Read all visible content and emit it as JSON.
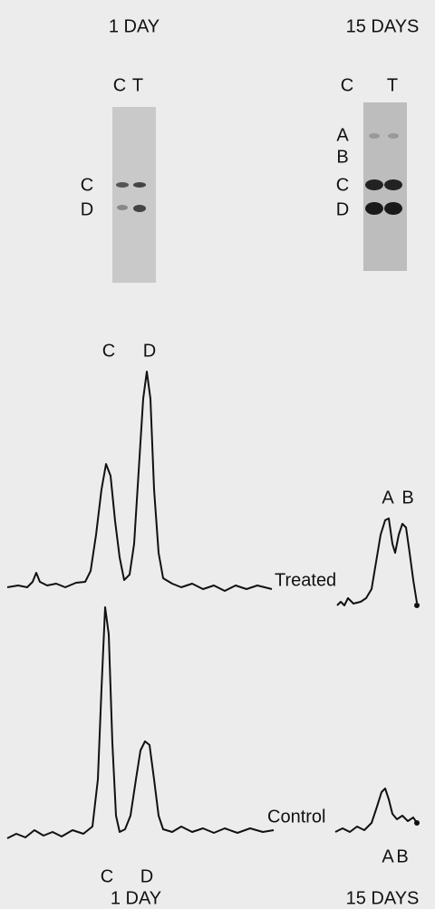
{
  "top_labels": {
    "left": "1 DAY",
    "right": "15 DAYS"
  },
  "gel_left": {
    "lanes": [
      "C",
      "T"
    ],
    "bands": [
      "C",
      "D"
    ]
  },
  "gel_right": {
    "lanes": [
      "C",
      "T"
    ],
    "bands": [
      "A",
      "B",
      "C",
      "D"
    ]
  },
  "traces": {
    "treated_left_peaks": [
      "C",
      "D"
    ],
    "treated_right_peaks": [
      "A",
      "B"
    ],
    "treated_label": "Treated",
    "control_left_peaks": [
      "C",
      "D"
    ],
    "control_right_peaks": [
      "A",
      "B"
    ],
    "control_label": "Control"
  },
  "bottom_labels": {
    "left": "1 DAY",
    "right": "15 DAYS"
  }
}
